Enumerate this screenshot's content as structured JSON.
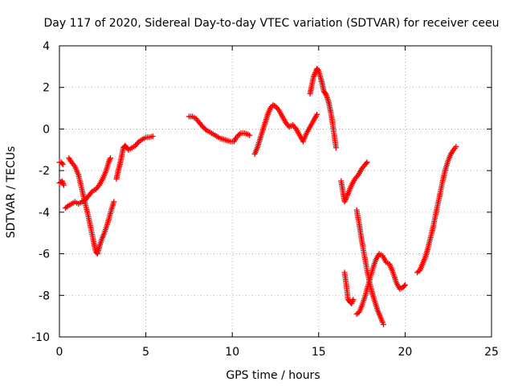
{
  "chart_data": {
    "type": "scatter",
    "title": "Day 117 of 2020, Sidereal Day-to-day VTEC variation (SDTVAR) for receiver ceeu",
    "xlabel": "GPS time / hours",
    "ylabel": "SDTVAR / TECUs",
    "xlim": [
      0,
      25
    ],
    "ylim": [
      -10,
      4
    ],
    "xticks": [
      "0",
      "5",
      "10",
      "15",
      "20",
      "25"
    ],
    "yticks": [
      "-10",
      "-8",
      "-6",
      "-4",
      "-2",
      "0",
      "2",
      "4"
    ],
    "grid": true,
    "marker": "+",
    "color": "#ff0000",
    "segments": [
      [
        [
          0,
          -2.6
        ],
        [
          0.15,
          -2.5
        ],
        [
          0.25,
          -2.7
        ]
      ],
      [
        [
          0,
          -1.6
        ],
        [
          0.1,
          -1.6
        ],
        [
          0.2,
          -1.7
        ]
      ],
      [
        [
          0.35,
          -3.8
        ],
        [
          0.5,
          -3.7
        ],
        [
          0.7,
          -3.6
        ],
        [
          0.9,
          -3.5
        ],
        [
          1.1,
          -3.6
        ],
        [
          1.3,
          -3.5
        ],
        [
          1.5,
          -3.4
        ],
        [
          1.7,
          -3.2
        ],
        [
          1.9,
          -3.0
        ],
        [
          2.1,
          -2.9
        ],
        [
          2.3,
          -2.7
        ],
        [
          2.5,
          -2.4
        ],
        [
          2.7,
          -2.0
        ],
        [
          2.85,
          -1.6
        ],
        [
          2.95,
          -1.4
        ]
      ],
      [
        [
          0.55,
          -1.4
        ],
        [
          0.7,
          -1.6
        ],
        [
          0.9,
          -1.8
        ],
        [
          1.1,
          -2.2
        ],
        [
          1.3,
          -2.9
        ],
        [
          1.5,
          -3.6
        ],
        [
          1.7,
          -4.3
        ],
        [
          1.85,
          -4.9
        ],
        [
          2.0,
          -5.5
        ],
        [
          2.1,
          -5.9
        ],
        [
          2.2,
          -6.0
        ],
        [
          2.3,
          -5.7
        ],
        [
          2.45,
          -5.3
        ],
        [
          2.6,
          -5.0
        ],
        [
          2.8,
          -4.5
        ],
        [
          3.0,
          -3.9
        ],
        [
          3.15,
          -3.5
        ]
      ],
      [
        [
          3.3,
          -2.4
        ],
        [
          3.4,
          -2.0
        ],
        [
          3.5,
          -1.7
        ],
        [
          3.6,
          -1.3
        ],
        [
          3.7,
          -0.9
        ],
        [
          3.8,
          -0.8
        ],
        [
          3.9,
          -0.9
        ],
        [
          4.0,
          -1.0
        ],
        [
          4.2,
          -0.9
        ],
        [
          4.4,
          -0.8
        ],
        [
          4.6,
          -0.6
        ],
        [
          4.8,
          -0.5
        ],
        [
          5.0,
          -0.4
        ],
        [
          5.2,
          -0.4
        ],
        [
          5.4,
          -0.35
        ]
      ],
      [
        [
          7.5,
          0.6
        ],
        [
          7.7,
          0.6
        ],
        [
          7.9,
          0.5
        ],
        [
          8.1,
          0.3
        ],
        [
          8.3,
          0.1
        ],
        [
          8.5,
          -0.05
        ],
        [
          8.7,
          -0.15
        ],
        [
          8.9,
          -0.25
        ],
        [
          9.1,
          -0.35
        ],
        [
          9.3,
          -0.45
        ],
        [
          9.5,
          -0.5
        ],
        [
          9.7,
          -0.55
        ],
        [
          9.9,
          -0.6
        ],
        [
          10.1,
          -0.6
        ],
        [
          10.2,
          -0.45
        ],
        [
          10.35,
          -0.3
        ],
        [
          10.5,
          -0.2
        ],
        [
          10.7,
          -0.2
        ],
        [
          10.9,
          -0.25
        ],
        [
          11.0,
          -0.3
        ]
      ],
      [
        [
          11.3,
          -1.2
        ],
        [
          11.45,
          -0.9
        ],
        [
          11.6,
          -0.5
        ],
        [
          11.75,
          -0.1
        ],
        [
          11.9,
          0.3
        ],
        [
          12.05,
          0.7
        ],
        [
          12.2,
          1.0
        ],
        [
          12.35,
          1.15
        ],
        [
          12.5,
          1.1
        ],
        [
          12.7,
          0.9
        ],
        [
          12.9,
          0.6
        ],
        [
          13.1,
          0.3
        ],
        [
          13.3,
          0.1
        ],
        [
          13.5,
          0.2
        ],
        [
          13.7,
          0.0
        ],
        [
          13.9,
          -0.3
        ],
        [
          14.1,
          -0.6
        ],
        [
          14.3,
          -0.2
        ],
        [
          14.5,
          0.1
        ],
        [
          14.7,
          0.4
        ],
        [
          14.9,
          0.7
        ]
      ],
      [
        [
          14.5,
          1.7
        ],
        [
          14.6,
          2.1
        ],
        [
          14.7,
          2.5
        ],
        [
          14.8,
          2.7
        ],
        [
          14.9,
          2.9
        ],
        [
          15.0,
          2.8
        ],
        [
          15.1,
          2.5
        ],
        [
          15.2,
          2.2
        ],
        [
          15.3,
          1.8
        ],
        [
          15.4,
          1.7
        ],
        [
          15.5,
          1.5
        ],
        [
          15.6,
          1.2
        ],
        [
          15.7,
          0.8
        ],
        [
          15.8,
          0.3
        ],
        [
          15.9,
          -0.3
        ],
        [
          16.0,
          -0.9
        ]
      ],
      [
        [
          16.3,
          -2.5
        ],
        [
          16.4,
          -3.0
        ],
        [
          16.5,
          -3.5
        ],
        [
          16.6,
          -3.3
        ],
        [
          16.7,
          -3.1
        ],
        [
          16.9,
          -2.7
        ],
        [
          17.1,
          -2.4
        ],
        [
          17.3,
          -2.2
        ],
        [
          17.5,
          -1.9
        ],
        [
          17.7,
          -1.7
        ],
        [
          17.8,
          -1.6
        ]
      ],
      [
        [
          16.5,
          -6.9
        ],
        [
          16.6,
          -7.5
        ],
        [
          16.7,
          -8.2
        ],
        [
          16.8,
          -8.3
        ],
        [
          16.9,
          -8.4
        ],
        [
          17.0,
          -8.2
        ]
      ],
      [
        [
          17.2,
          -8.9
        ],
        [
          17.35,
          -8.8
        ],
        [
          17.5,
          -8.5
        ],
        [
          17.7,
          -8.0
        ],
        [
          17.9,
          -7.4
        ],
        [
          18.1,
          -6.8
        ],
        [
          18.3,
          -6.3
        ],
        [
          18.5,
          -6.0
        ],
        [
          18.7,
          -6.1
        ],
        [
          18.9,
          -6.4
        ],
        [
          19.1,
          -6.5
        ],
        [
          19.3,
          -6.9
        ],
        [
          19.5,
          -7.4
        ],
        [
          19.7,
          -7.7
        ],
        [
          19.9,
          -7.6
        ],
        [
          20.0,
          -7.5
        ]
      ],
      [
        [
          17.2,
          -3.9
        ],
        [
          17.35,
          -4.6
        ],
        [
          17.5,
          -5.4
        ],
        [
          17.65,
          -6.1
        ],
        [
          17.8,
          -6.8
        ],
        [
          17.95,
          -7.4
        ],
        [
          18.1,
          -7.9
        ],
        [
          18.25,
          -8.3
        ],
        [
          18.4,
          -8.7
        ],
        [
          18.55,
          -9.0
        ],
        [
          18.7,
          -9.3
        ],
        [
          18.75,
          -9.4
        ]
      ],
      [
        [
          20.7,
          -6.9
        ],
        [
          20.85,
          -6.8
        ],
        [
          21.0,
          -6.5
        ],
        [
          21.15,
          -6.2
        ],
        [
          21.3,
          -5.8
        ],
        [
          21.45,
          -5.3
        ],
        [
          21.6,
          -4.8
        ],
        [
          21.75,
          -4.2
        ],
        [
          21.9,
          -3.6
        ],
        [
          22.05,
          -3.0
        ],
        [
          22.2,
          -2.4
        ],
        [
          22.35,
          -1.9
        ],
        [
          22.5,
          -1.5
        ],
        [
          22.65,
          -1.2
        ],
        [
          22.8,
          -1.0
        ],
        [
          22.95,
          -0.85
        ]
      ]
    ]
  }
}
